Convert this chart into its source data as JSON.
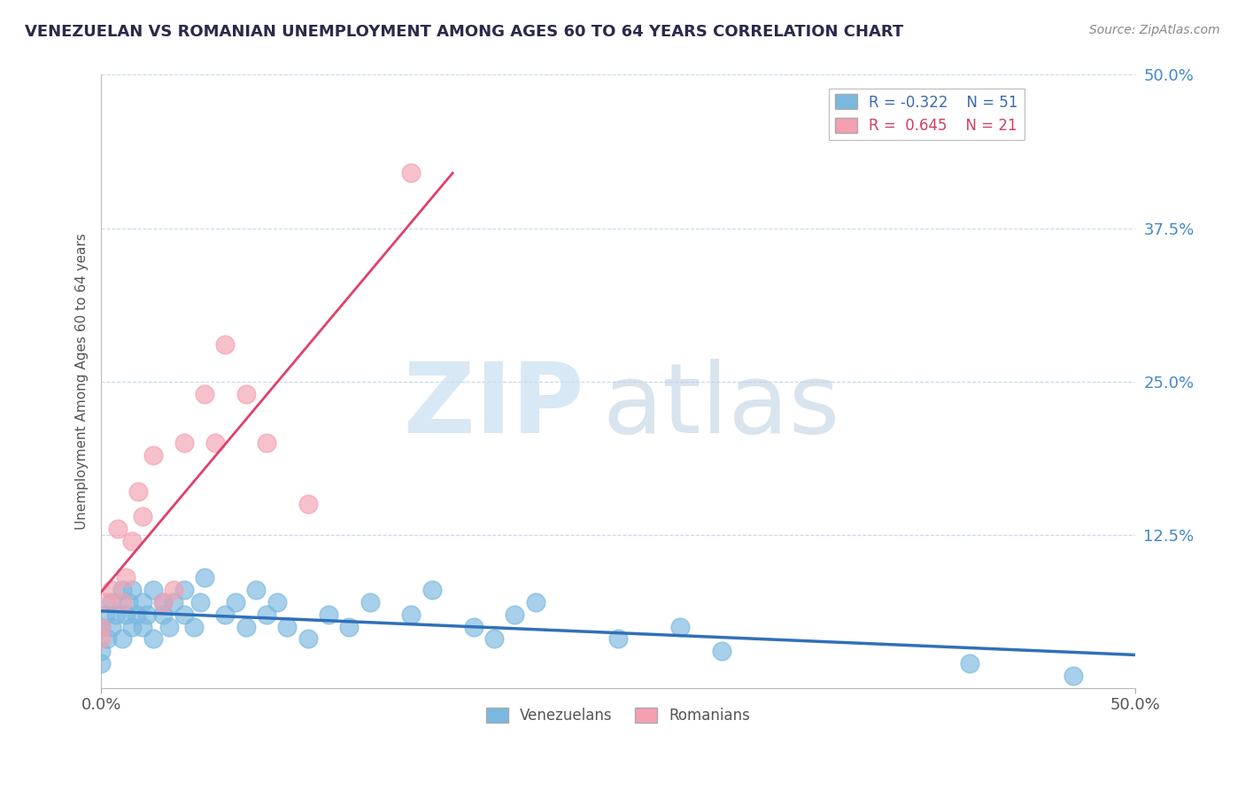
{
  "title": "VENEZUELAN VS ROMANIAN UNEMPLOYMENT AMONG AGES 60 TO 64 YEARS CORRELATION CHART",
  "source": "Source: ZipAtlas.com",
  "ylabel": "Unemployment Among Ages 60 to 64 years",
  "xlim": [
    0.0,
    0.5
  ],
  "ylim": [
    0.0,
    0.5
  ],
  "yticks": [
    0.0,
    0.125,
    0.25,
    0.375,
    0.5
  ],
  "ytick_labels": [
    "",
    "12.5%",
    "25.0%",
    "37.5%",
    "50.0%"
  ],
  "legend_r1": "R = -0.322",
  "legend_n1": "N = 51",
  "legend_r2": "R =  0.645",
  "legend_n2": "N = 21",
  "venezuelan_color": "#7ab8e0",
  "romanian_color": "#f4a0b0",
  "venezuelan_trend_color": "#3070b8",
  "romanian_trend_color": "#e0406a",
  "watermark_zip_color": "#c8dff0",
  "watermark_atlas_color": "#b8cfe0",
  "background_color": "#ffffff",
  "venezuelan_x": [
    0.0,
    0.0,
    0.0,
    0.002,
    0.003,
    0.005,
    0.005,
    0.007,
    0.01,
    0.01,
    0.012,
    0.013,
    0.015,
    0.015,
    0.017,
    0.02,
    0.02,
    0.022,
    0.025,
    0.025,
    0.03,
    0.03,
    0.033,
    0.035,
    0.04,
    0.04,
    0.045,
    0.048,
    0.05,
    0.06,
    0.065,
    0.07,
    0.075,
    0.08,
    0.085,
    0.09,
    0.1,
    0.11,
    0.12,
    0.13,
    0.15,
    0.16,
    0.18,
    0.19,
    0.2,
    0.21,
    0.25,
    0.28,
    0.3,
    0.42,
    0.47
  ],
  "venezuelan_y": [
    0.05,
    0.03,
    0.02,
    0.06,
    0.04,
    0.07,
    0.05,
    0.06,
    0.08,
    0.04,
    0.06,
    0.07,
    0.05,
    0.08,
    0.06,
    0.07,
    0.05,
    0.06,
    0.08,
    0.04,
    0.07,
    0.06,
    0.05,
    0.07,
    0.06,
    0.08,
    0.05,
    0.07,
    0.09,
    0.06,
    0.07,
    0.05,
    0.08,
    0.06,
    0.07,
    0.05,
    0.04,
    0.06,
    0.05,
    0.07,
    0.06,
    0.08,
    0.05,
    0.04,
    0.06,
    0.07,
    0.04,
    0.05,
    0.03,
    0.02,
    0.01
  ],
  "romanian_x": [
    0.0,
    0.0,
    0.002,
    0.005,
    0.008,
    0.01,
    0.012,
    0.015,
    0.018,
    0.02,
    0.025,
    0.03,
    0.035,
    0.04,
    0.05,
    0.055,
    0.06,
    0.07,
    0.08,
    0.1,
    0.15
  ],
  "romanian_y": [
    0.04,
    0.05,
    0.07,
    0.08,
    0.13,
    0.07,
    0.09,
    0.12,
    0.16,
    0.14,
    0.19,
    0.07,
    0.08,
    0.2,
    0.24,
    0.2,
    0.28,
    0.24,
    0.2,
    0.15,
    0.42
  ]
}
